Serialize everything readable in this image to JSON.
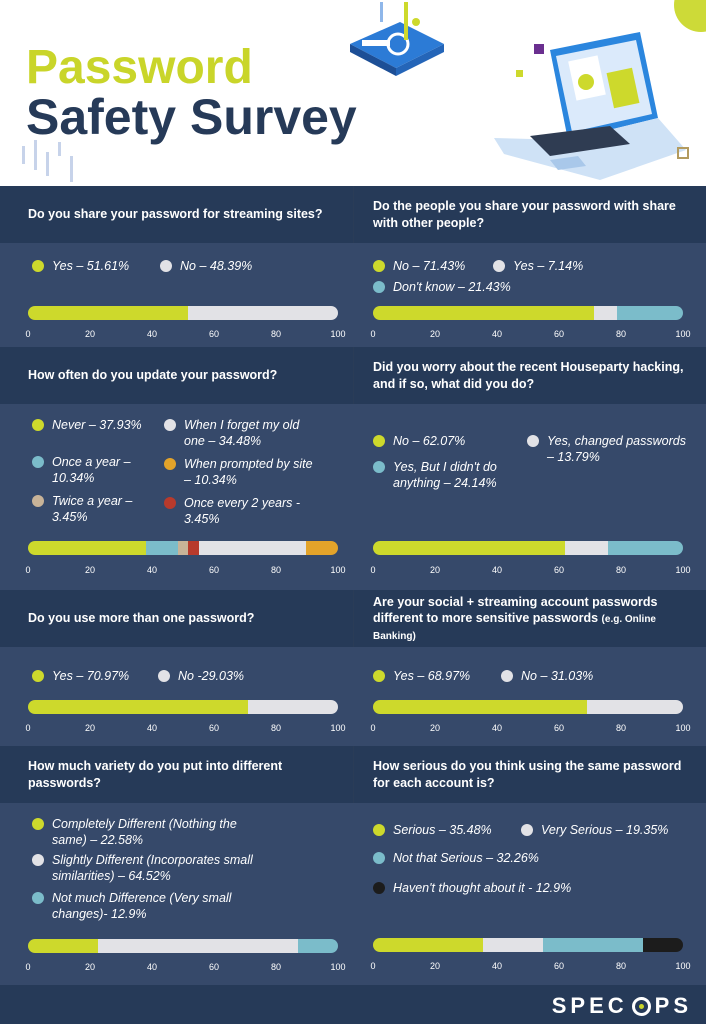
{
  "header": {
    "title_line1": "Password",
    "title_line2": "Safety Survey"
  },
  "footer": {
    "logo_left": "SPEC",
    "logo_right": "PS"
  },
  "colors": {
    "lime": "#cdd92c",
    "lightgray": "#e2e2e6",
    "teal": "#7bbcca",
    "tan": "#c8b398",
    "red": "#b83a2c",
    "orange": "#e3a32a",
    "black": "#1c1c1c",
    "navy": "#263a58"
  },
  "chart_data": [
    {
      "type": "bar",
      "stacked": true,
      "title": "Do you share your password for streaming sites?",
      "xlim": [
        0,
        100
      ],
      "ticks": [
        0,
        20,
        40,
        60,
        80,
        100
      ],
      "series": [
        {
          "name": "Yes",
          "value": 51.61,
          "label": "Yes – 51.61%",
          "color": "lime"
        },
        {
          "name": "No",
          "value": 48.39,
          "label": "No – 48.39%",
          "color": "lightgray"
        }
      ]
    },
    {
      "type": "bar",
      "stacked": true,
      "title": "Do the people you share your password with share with other people?",
      "xlim": [
        0,
        100
      ],
      "ticks": [
        0,
        20,
        40,
        60,
        80,
        100
      ],
      "series": [
        {
          "name": "No",
          "value": 71.43,
          "label": "No – 71.43%",
          "color": "lime"
        },
        {
          "name": "Yes",
          "value": 7.14,
          "label": "Yes – 7.14%",
          "color": "lightgray"
        },
        {
          "name": "Don't know",
          "value": 21.43,
          "label": "Don't know – 21.43%",
          "color": "teal"
        }
      ]
    },
    {
      "type": "bar",
      "stacked": true,
      "title": "How often do you update your password?",
      "xlim": [
        0,
        100
      ],
      "ticks": [
        0,
        20,
        40,
        60,
        80,
        100
      ],
      "series": [
        {
          "name": "Never",
          "value": 37.93,
          "label": "Never – 37.93%",
          "color": "lime"
        },
        {
          "name": "Once a year",
          "value": 10.34,
          "label": "Once a year – 10.34%",
          "color": "teal"
        },
        {
          "name": "Twice a year",
          "value": 3.45,
          "label": "Twice a year – 3.45%",
          "color": "tan"
        },
        {
          "name": "Once every 2 years",
          "value": 3.45,
          "label": "Once every 2 years - 3.45%",
          "color": "red"
        },
        {
          "name": "When I forget my old one",
          "value": 34.48,
          "label": "When I forget my old one – 34.48%",
          "color": "lightgray"
        },
        {
          "name": "When prompted by site",
          "value": 10.34,
          "label": "When prompted by site – 10.34%",
          "color": "orange"
        }
      ]
    },
    {
      "type": "bar",
      "stacked": true,
      "title": "Did you worry about the recent Houseparty hacking, and if so, what did you do?",
      "xlim": [
        0,
        100
      ],
      "ticks": [
        0,
        20,
        40,
        60,
        80,
        100
      ],
      "series": [
        {
          "name": "No",
          "value": 62.07,
          "label": "No – 62.07%",
          "color": "lime"
        },
        {
          "name": "Yes, changed passwords",
          "value": 13.79,
          "label": "Yes, changed passwords – 13.79%",
          "color": "lightgray"
        },
        {
          "name": "Yes, But I didn't do anything",
          "value": 24.14,
          "label": "Yes, But I didn't do anything – 24.14%",
          "color": "teal"
        }
      ]
    },
    {
      "type": "bar",
      "stacked": true,
      "title": "Do you use more than one password?",
      "xlim": [
        0,
        100
      ],
      "ticks": [
        0,
        20,
        40,
        60,
        80,
        100
      ],
      "series": [
        {
          "name": "Yes",
          "value": 70.97,
          "label": "Yes – 70.97%",
          "color": "lime"
        },
        {
          "name": "No",
          "value": 29.03,
          "label": "No -29.03%",
          "color": "lightgray"
        }
      ]
    },
    {
      "type": "bar",
      "stacked": true,
      "title": "Are your social + streaming account passwords different to more sensitive passwords",
      "subtitle": "(e.g. Online Banking)",
      "xlim": [
        0,
        100
      ],
      "ticks": [
        0,
        20,
        40,
        60,
        80,
        100
      ],
      "series": [
        {
          "name": "Yes",
          "value": 68.97,
          "label": "Yes – 68.97%",
          "color": "lime"
        },
        {
          "name": "No",
          "value": 31.03,
          "label": "No – 31.03%",
          "color": "lightgray"
        }
      ]
    },
    {
      "type": "bar",
      "stacked": true,
      "title": "How much variety do you put into different passwords?",
      "xlim": [
        0,
        100
      ],
      "ticks": [
        0,
        20,
        40,
        60,
        80,
        100
      ],
      "series": [
        {
          "name": "Completely Different",
          "value": 22.58,
          "label": "Completely Different (Nothing the same) – 22.58%",
          "color": "lime"
        },
        {
          "name": "Slightly Different",
          "value": 64.52,
          "label": "Slightly Different (Incorporates small similarities) – 64.52%",
          "color": "lightgray"
        },
        {
          "name": "Not much Difference",
          "value": 12.9,
          "label": "Not much Difference (Very small changes)- 12.9%",
          "color": "teal"
        }
      ]
    },
    {
      "type": "bar",
      "stacked": true,
      "title": "How serious do you think using the same password for each account is?",
      "xlim": [
        0,
        100
      ],
      "ticks": [
        0,
        20,
        40,
        60,
        80,
        100
      ],
      "series": [
        {
          "name": "Serious",
          "value": 35.48,
          "label": "Serious – 35.48%",
          "color": "lime"
        },
        {
          "name": "Very Serious",
          "value": 19.35,
          "label": "Very Serious – 19.35%",
          "color": "lightgray"
        },
        {
          "name": "Not that Serious",
          "value": 32.26,
          "label": "Not that Serious – 32.26%",
          "color": "teal"
        },
        {
          "name": "Haven't thought about it",
          "value": 12.9,
          "label": "Haven't thought about it - 12.9%",
          "color": "black"
        }
      ]
    }
  ]
}
